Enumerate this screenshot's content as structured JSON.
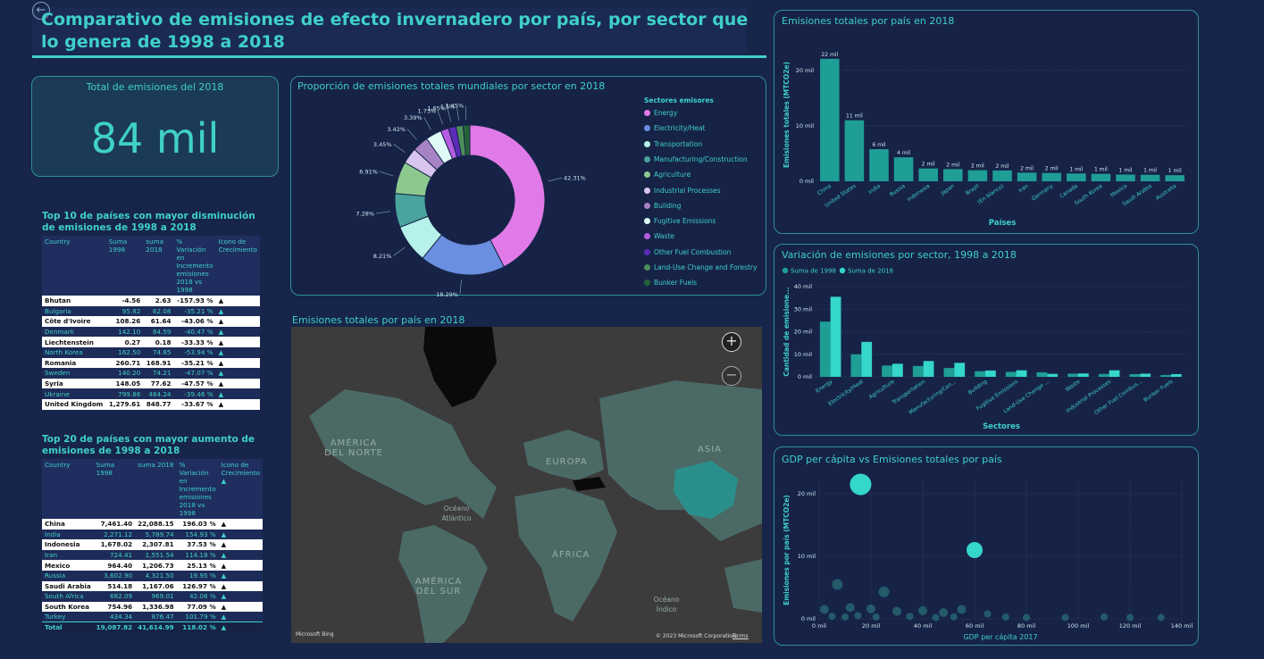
{
  "title": "Comparativo de emisiones de efecto invernadero por país, por sector que lo genera de 1998 a 2018",
  "kpi": {
    "title": "Total de emisiones del 2018",
    "value": "84 mil"
  },
  "donut": {
    "title": "Proporción de emisiones totales mundiales por sector en 2018",
    "legend_title": "Sectores emisores"
  },
  "map": {
    "title": "Emisiones totales por país en 2018",
    "labels": {
      "na": "AMÉRICA DEL NORTE",
      "sa": "AMÉRICA DEL SUR",
      "eu": "EUROPA",
      "as": "ASIA",
      "af": "ÁFRICA",
      "atl": "Océano Atlántico",
      "ind": "Océano Índico"
    },
    "bing": "Microsoft Bing",
    "copyright": "© 2023 Microsoft Corporation",
    "terms": "Terms",
    "zoom_in": "+",
    "zoom_out": "−"
  },
  "table1": {
    "title": "Top 10 de países con mayor disminución de emisiones de 1998 a 2018",
    "headers": [
      "Country",
      "Suma 1998",
      "suma 2018",
      "% Variación en Incremento emisiones 2018 vs 1998",
      "Icono de Crecimiento"
    ],
    "rows": [
      [
        "Bhutan",
        "-4.56",
        "2.63",
        "-157.93 %",
        "▲"
      ],
      [
        "Bulgaria",
        "95.82",
        "62.08",
        "-35.21 %",
        "▲"
      ],
      [
        "Côte d'Ivoire",
        "108.26",
        "61.64",
        "-43.06 %",
        "▲"
      ],
      [
        "Denmark",
        "142.10",
        "84.59",
        "-40.47 %",
        "▲"
      ],
      [
        "Liechtenstein",
        "0.27",
        "0.18",
        "-33.33 %",
        "▲"
      ],
      [
        "North Korea",
        "162.50",
        "74.85",
        "-53.94 %",
        "▲"
      ],
      [
        "Romania",
        "260.71",
        "168.91",
        "-35.21 %",
        "▲"
      ],
      [
        "Sweden",
        "140.20",
        "74.21",
        "-47.07 %",
        "▲"
      ],
      [
        "Syria",
        "148.05",
        "77.62",
        "-47.57 %",
        "▲"
      ],
      [
        "Ukraine",
        "799.86",
        "484.24",
        "-39.46 %",
        "▲"
      ],
      [
        "United Kingdom",
        "1,279.61",
        "848.77",
        "-33.67 %",
        "▲"
      ]
    ]
  },
  "table2": {
    "title": "Top 20 de países con mayor aumento de emisiones de 1998 a 2018",
    "headers": [
      "Country",
      "Suma 1998",
      "suma 2018",
      "% Variación en Incremento emisiones 2018 vs 1998",
      "Icono de Crecimiento ▲"
    ],
    "rows": [
      [
        "China",
        "7,461.40",
        "22,088.15",
        "196.03 %",
        "▲"
      ],
      [
        "India",
        "2,271.12",
        "5,789.74",
        "154.93 %",
        "▲"
      ],
      [
        "Indonesia",
        "1,678.02",
        "2,307.81",
        "37.53 %",
        "▲"
      ],
      [
        "Iran",
        "724.41",
        "1,551.54",
        "114.18 %",
        "▲"
      ],
      [
        "Mexico",
        "964.40",
        "1,206.73",
        "25.13 %",
        "▲"
      ],
      [
        "Russia",
        "3,602.90",
        "4,321.50",
        "19.95 %",
        "▲"
      ],
      [
        "Saudi Arabia",
        "514.18",
        "1,167.06",
        "126.97 %",
        "▲"
      ],
      [
        "South Africa",
        "682.09",
        "969.01",
        "42.06 %",
        "▲"
      ],
      [
        "South Korea",
        "754.96",
        "1,336.98",
        "77.09 %",
        "▲"
      ],
      [
        "Turkey",
        "434.34",
        "876.47",
        "101.79 %",
        "▲"
      ]
    ],
    "total": [
      "Total",
      "19,087.82",
      "41,614.99",
      "118.02 %",
      "▲"
    ]
  },
  "colors": {
    "accent": "#3fd0c9",
    "bar": "#1f9e96",
    "bar2": "#35d6cc",
    "background": "#17254a"
  },
  "chart_data": [
    {
      "type": "pie",
      "title": "Proporción de emisiones totales mundiales por sector en 2018",
      "legend_title": "Sectores emisores",
      "legend_position": "right",
      "slices": [
        {
          "label": "Energy",
          "pct": 42.31,
          "text": "42.31%",
          "color": "#e07ae8"
        },
        {
          "label": "Electricity/Heat",
          "pct": 18.29,
          "text": "18.29%",
          "color": "#6a8fe0"
        },
        {
          "label": "Transportation",
          "pct": 8.21,
          "text": "8.21%",
          "color": "#b6f2e9"
        },
        {
          "label": "Manufacturing/Construction",
          "pct": 7.28,
          "text": "7.28%",
          "color": "#4aa39c"
        },
        {
          "label": "Agriculture",
          "pct": 6.91,
          "text": "6.91%",
          "color": "#8cc98f"
        },
        {
          "label": "Industrial Processes",
          "pct": 3.45,
          "text": "3.45%",
          "color": "#d9c4f0"
        },
        {
          "label": "Building",
          "pct": 3.42,
          "text": "3.42%",
          "color": "#a683c4"
        },
        {
          "label": "Fugitive Emissions",
          "pct": 3.39,
          "text": "3.39%",
          "color": "#dffaf6"
        },
        {
          "label": "Waste",
          "pct": 1.73,
          "text": "1.73%",
          "color": "#b65ce0"
        },
        {
          "label": "Other Fuel Combustion",
          "pct": 1.65,
          "text": "1.65%",
          "color": "#5a2cb8"
        },
        {
          "label": "Land-Use Change and Forestry",
          "pct": 1.5,
          "text": "1.5%",
          "color": "#4d8f5a"
        },
        {
          "label": "Bunker Fuels",
          "pct": 1.45,
          "text": "1.45%",
          "color": "#24633a"
        }
      ]
    },
    {
      "type": "bar",
      "title": "Emisiones totales por país en 2018",
      "xlabel": "Países",
      "ylabel": "Emisiones totales (MTCO2e)",
      "ylim": [
        0,
        24
      ],
      "yticks": [
        0,
        10,
        20
      ],
      "ytick_labels": [
        "0 mil",
        "10 mil",
        "20 mil"
      ],
      "categories": [
        "China",
        "United States",
        "India",
        "Russia",
        "Indonesia",
        "Japan",
        "Brazil",
        "(En blanco)",
        "Iran",
        "Germany",
        "Canada",
        "South Korea",
        "Mexico",
        "Saudi Arabia",
        "Australia"
      ],
      "values": [
        22.09,
        11.0,
        5.79,
        4.32,
        2.31,
        2.2,
        2.0,
        1.95,
        1.55,
        1.5,
        1.4,
        1.34,
        1.21,
        1.17,
        1.1
      ],
      "data_labels": [
        "22 mil",
        "11 mil",
        "6 mil",
        "4 mil",
        "2 mil",
        "2 mil",
        "2 mil",
        "2 mil",
        "2 mil",
        "2 mil",
        "1 mil",
        "1 mil",
        "1 mil",
        "1 mil",
        "1 mil"
      ]
    },
    {
      "type": "bar",
      "title": "Variación de emisiones por sector, 1998 a 2018",
      "xlabel": "Sectores",
      "ylabel": "Cantidad de emisione...",
      "ylim": [
        0,
        40
      ],
      "yticks": [
        0,
        10,
        20,
        30,
        40
      ],
      "ytick_labels": [
        "0 mil",
        "10 mil",
        "20 mil",
        "30 mil",
        "40 mil"
      ],
      "legend_position": "top-left",
      "categories": [
        "Energy",
        "Electricity/Heat",
        "Agriculture",
        "Transportation",
        "Manufacturing/Con...",
        "Building",
        "Fugitive Emissions",
        "Land-Use Change ...",
        "Waste",
        "Industrial Processes",
        "Other Fuel Combus...",
        "Bunker Fuels"
      ],
      "series": [
        {
          "name": "Suma de 1998",
          "values": [
            24.5,
            10.0,
            5.0,
            4.8,
            3.9,
            2.5,
            2.2,
            2.0,
            1.4,
            1.3,
            1.2,
            0.8
          ]
        },
        {
          "name": "Suma de 2018",
          "values": [
            35.5,
            15.5,
            5.8,
            7.0,
            6.2,
            2.8,
            2.9,
            1.3,
            1.5,
            2.9,
            1.4,
            1.2
          ]
        }
      ]
    },
    {
      "type": "scatter",
      "title": "GDP per cápita vs Emisiones totales por país",
      "xlabel": "GDP per cápita 2017",
      "ylabel": "Emisiones por país (MTCO2e)",
      "xlim": [
        0,
        140
      ],
      "ylim": [
        0,
        22
      ],
      "xticks": [
        0,
        20,
        40,
        60,
        80,
        100,
        120,
        140
      ],
      "xtick_labels": [
        "0 mil",
        "20 mil",
        "40 mil",
        "60 mil",
        "80 mil",
        "100 mil",
        "120 mil",
        "140 mil"
      ],
      "yticks": [
        0,
        10,
        20
      ],
      "ytick_labels": [
        "0 mil",
        "10 mil",
        "20 mil"
      ],
      "points": [
        {
          "x": 16,
          "y": 21.5,
          "r": 12
        },
        {
          "x": 60,
          "y": 11,
          "r": 9
        },
        {
          "x": 7,
          "y": 5.5,
          "r": 6
        },
        {
          "x": 25,
          "y": 4.3,
          "r": 6
        },
        {
          "x": 2,
          "y": 1.5,
          "r": 5
        },
        {
          "x": 12,
          "y": 1.8,
          "r": 5
        },
        {
          "x": 20,
          "y": 1.6,
          "r": 5
        },
        {
          "x": 30,
          "y": 1.2,
          "r": 5
        },
        {
          "x": 40,
          "y": 1.3,
          "r": 5
        },
        {
          "x": 48,
          "y": 1.0,
          "r": 5
        },
        {
          "x": 55,
          "y": 1.5,
          "r": 5
        },
        {
          "x": 65,
          "y": 0.8,
          "r": 4
        },
        {
          "x": 5,
          "y": 0.4,
          "r": 4
        },
        {
          "x": 10,
          "y": 0.3,
          "r": 4
        },
        {
          "x": 15,
          "y": 0.5,
          "r": 4
        },
        {
          "x": 22,
          "y": 0.3,
          "r": 4
        },
        {
          "x": 35,
          "y": 0.4,
          "r": 4
        },
        {
          "x": 45,
          "y": 0.2,
          "r": 4
        },
        {
          "x": 52,
          "y": 0.3,
          "r": 4
        },
        {
          "x": 72,
          "y": 0.3,
          "r": 4
        },
        {
          "x": 80,
          "y": 0.2,
          "r": 4
        },
        {
          "x": 95,
          "y": 0.2,
          "r": 4
        },
        {
          "x": 110,
          "y": 0.3,
          "r": 4
        },
        {
          "x": 120,
          "y": 0.2,
          "r": 4
        },
        {
          "x": 132,
          "y": 0.2,
          "r": 4
        }
      ]
    }
  ]
}
